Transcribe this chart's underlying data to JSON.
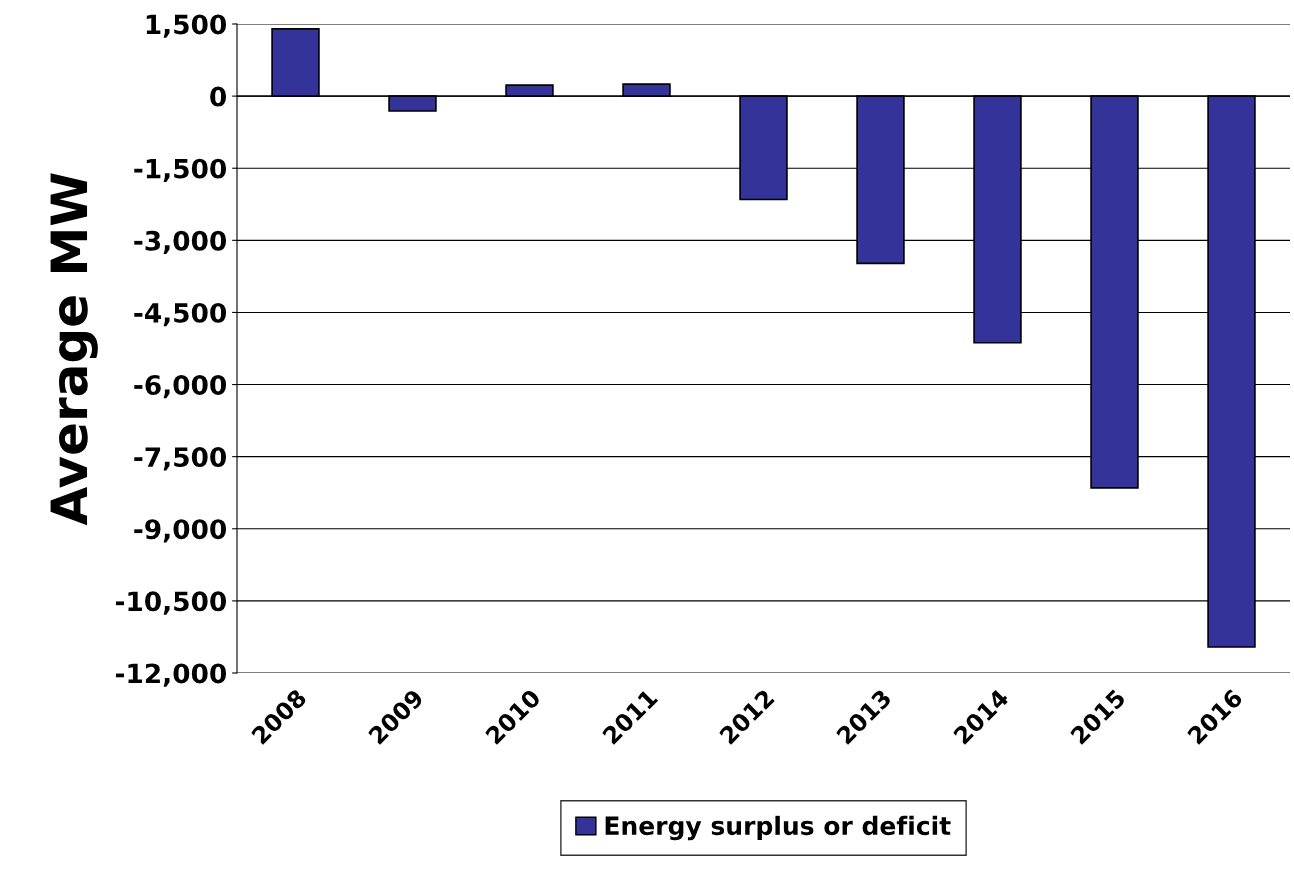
{
  "chart_data": {
    "type": "bar",
    "ylabel": "Average MW",
    "categories": [
      "2008",
      "2009",
      "2010",
      "2011",
      "2012",
      "2013",
      "2014",
      "2015",
      "2016"
    ],
    "series": [
      {
        "name": "Energy surplus or deficit",
        "color": "#333399",
        "values": [
          1400,
          -310,
          230,
          250,
          -2150,
          -3480,
          -5130,
          -8150,
          -11460
        ]
      }
    ],
    "ylim": [
      -12000,
      1500
    ],
    "yticks": [
      {
        "value": 1500,
        "label": "1,500"
      },
      0,
      {
        "value": -1500,
        "label": "-1,500"
      },
      {
        "value": -3000,
        "label": "-3,000"
      },
      {
        "value": -4500,
        "label": "-4,500"
      },
      {
        "value": -6000,
        "label": "-6,000"
      },
      {
        "value": -7500,
        "label": "-7,500"
      },
      {
        "value": -9000,
        "label": "-9,000"
      },
      {
        "value": -10500,
        "label": "-10,500"
      },
      {
        "value": -12000,
        "label": "-12,000"
      }
    ],
    "grid": "y",
    "legend": "bottom"
  }
}
